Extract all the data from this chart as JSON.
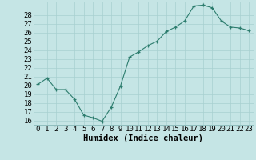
{
  "x": [
    0,
    1,
    2,
    3,
    4,
    5,
    6,
    7,
    8,
    9,
    10,
    11,
    12,
    13,
    14,
    15,
    16,
    17,
    18,
    19,
    20,
    21,
    22,
    23
  ],
  "y": [
    20.1,
    20.8,
    19.5,
    19.5,
    18.4,
    16.6,
    16.3,
    15.9,
    17.5,
    19.9,
    23.2,
    23.8,
    24.5,
    25.0,
    26.1,
    26.6,
    27.3,
    29.0,
    29.1,
    28.8,
    27.3,
    26.6,
    26.5,
    26.2
  ],
  "xlabel": "Humidex (Indice chaleur)",
  "xlim": [
    -0.5,
    23.5
  ],
  "ylim": [
    15.5,
    29.5
  ],
  "yticks": [
    16,
    17,
    18,
    19,
    20,
    21,
    22,
    23,
    24,
    25,
    26,
    27,
    28
  ],
  "xtick_labels": [
    "0",
    "1",
    "2",
    "3",
    "4",
    "5",
    "6",
    "7",
    "8",
    "9",
    "10",
    "11",
    "12",
    "13",
    "14",
    "15",
    "16",
    "17",
    "18",
    "19",
    "20",
    "21",
    "22",
    "23"
  ],
  "line_color": "#2d7d6e",
  "bg_color": "#c5e5e5",
  "grid_color": "#a8d0d0",
  "xlabel_fontsize": 7.5,
  "tick_fontsize": 6.5
}
